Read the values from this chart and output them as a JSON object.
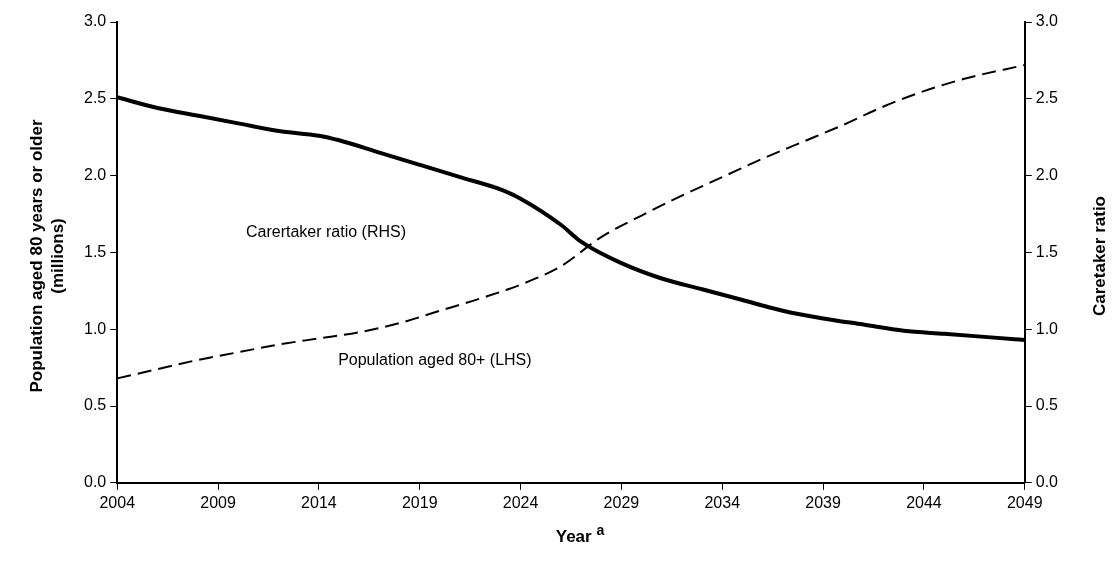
{
  "chart_data": {
    "type": "line",
    "xlabel": "Year $^{a}$",
    "ylabel": "Population aged 80 years or older (millions)",
    "y2label": "Caretaker ratio",
    "xlim": [
      2004,
      2049
    ],
    "xticks": [
      2004,
      2009,
      2014,
      2019,
      2024,
      2029,
      2034,
      2039,
      2044,
      2049
    ],
    "ylim": [
      0,
      3
    ],
    "yticks": [
      {
        "value": 0,
        "label": "0.0"
      },
      0.5,
      {
        "value": 1,
        "label": "1.0"
      },
      1.5,
      {
        "value": 2,
        "label": "2.0"
      },
      2.5,
      {
        "value": 3,
        "label": "3.0"
      }
    ],
    "y2lim": [
      0,
      3
    ],
    "y2ticks": [
      {
        "value": 0,
        "label": "0.0"
      },
      0.5,
      {
        "value": 1,
        "label": "1.0"
      },
      1.5,
      {
        "value": 2,
        "label": "2.0"
      },
      2.5,
      {
        "value": 3,
        "label": "3.0"
      }
    ],
    "grid": false,
    "legend": false,
    "marker": "none",
    "series": [
      {
        "color": "#000000",
        "line_style": "solid",
        "x": [
          2004,
          2006,
          2008,
          2010,
          2012,
          2014,
          2015,
          2017,
          2019,
          2021,
          2023,
          2024,
          2026,
          2027,
          2029,
          2031,
          2033,
          2035,
          2037,
          2039,
          2041,
          2043,
          2045,
          2047,
          2049
        ],
        "values": [
          2.51,
          2.44,
          2.39,
          2.34,
          2.29,
          2.26,
          2.23,
          2.15,
          2.07,
          1.99,
          1.91,
          1.85,
          1.68,
          1.57,
          1.43,
          1.33,
          1.26,
          1.19,
          1.12,
          1.07,
          1.03,
          0.99,
          0.97,
          0.95,
          0.93
        ]
      },
      {
        "color": "#000000",
        "line_style": "dashed",
        "x": [
          2004,
          2006,
          2008,
          2010,
          2012,
          2014,
          2016,
          2018,
          2020,
          2022,
          2024,
          2026,
          2028,
          2030,
          2032,
          2034,
          2036,
          2038,
          2040,
          2042,
          2044,
          2046,
          2049
        ],
        "values": [
          0.68,
          0.74,
          0.8,
          0.85,
          0.9,
          0.94,
          0.98,
          1.04,
          1.12,
          1.2,
          1.29,
          1.41,
          1.6,
          1.74,
          1.87,
          1.99,
          2.11,
          2.22,
          2.33,
          2.45,
          2.55,
          2.63,
          2.72
        ]
      }
    ],
    "annotations": [
      "Carertaker ratio (RHS)",
      "Population aged 80+ (LHS)"
    ]
  }
}
